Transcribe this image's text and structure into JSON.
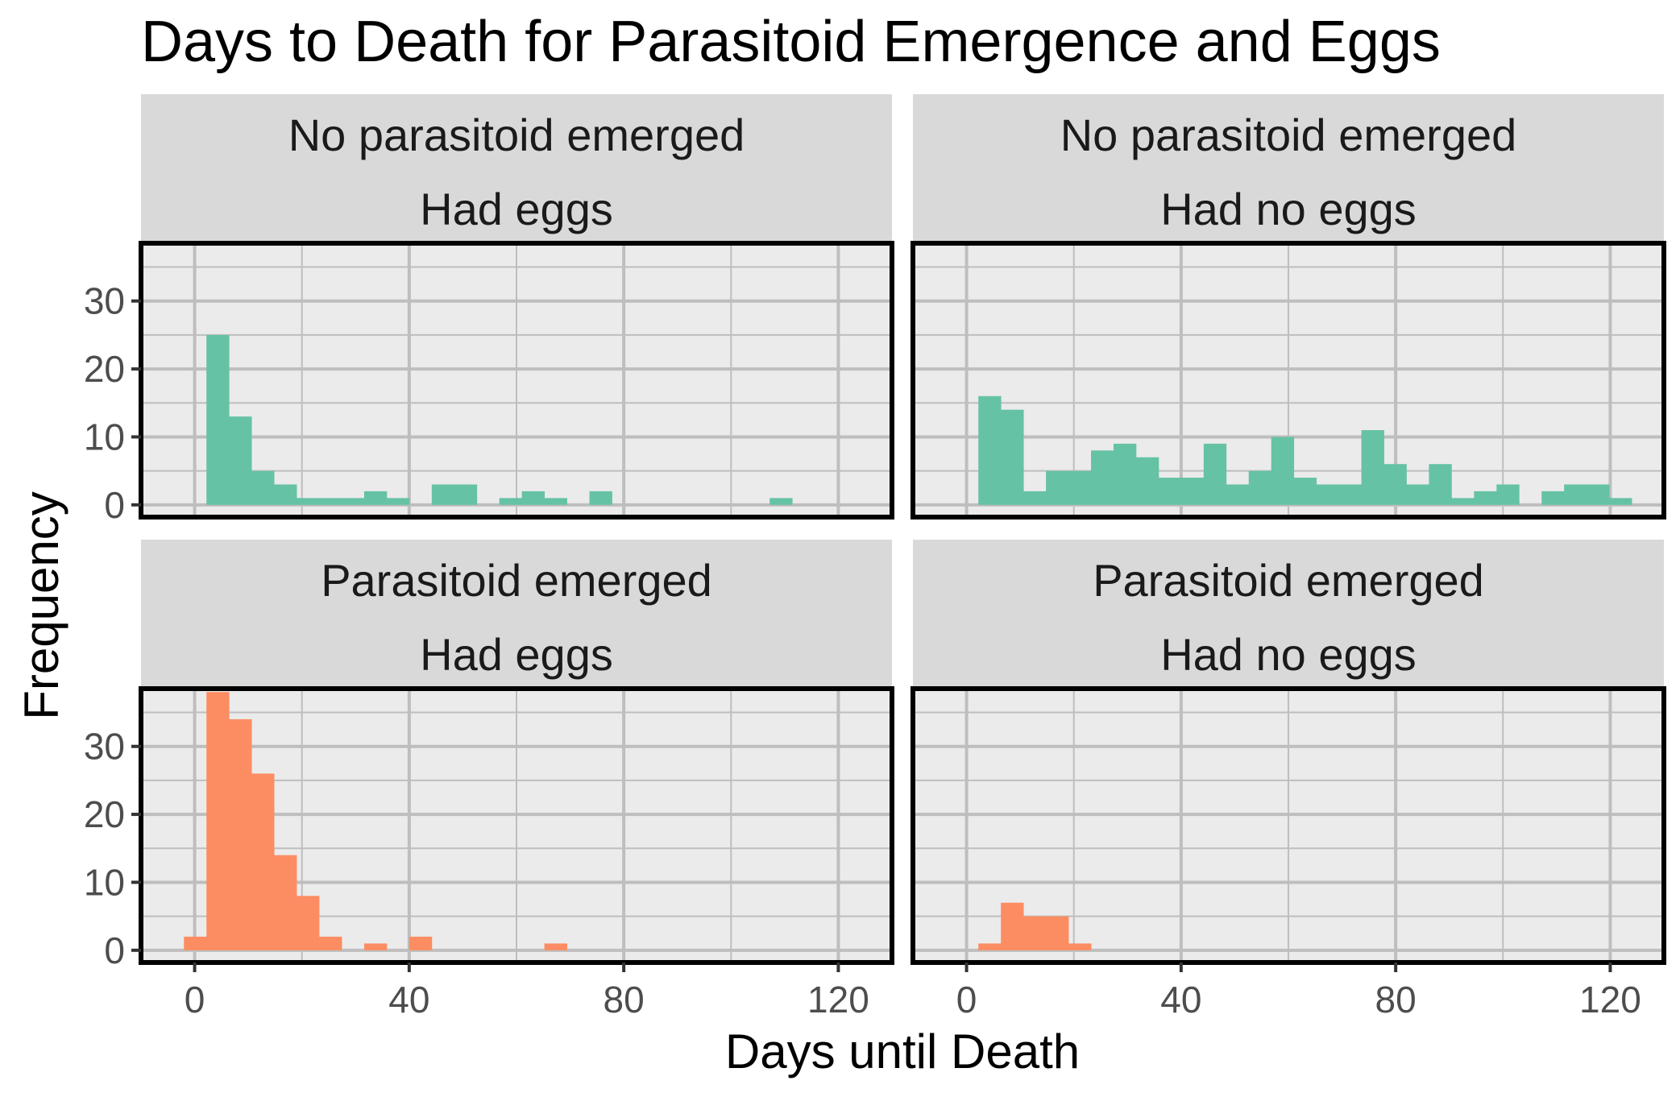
{
  "chart_data": {
    "type": "bar",
    "title": "Days to Death for Parasitoid Emergence and Eggs",
    "xlabel": "Days until Death",
    "ylabel": "Frequency",
    "xlim": [
      -10,
      130
    ],
    "ylim": [
      -1.8,
      38.5
    ],
    "x_ticks": [
      0,
      40,
      80,
      120
    ],
    "x_tick_labels": [
      "0",
      "40",
      "80",
      "120"
    ],
    "y_ticks": [
      0,
      10,
      20,
      30
    ],
    "y_tick_labels": [
      "0",
      "10",
      "20",
      "30"
    ],
    "bin_width": 4.2,
    "grid": true,
    "colors": {
      "no_parasitoid": "#66c2a5",
      "parasitoid": "#fc8d62",
      "panel_bg": "#ebebeb",
      "strip_bg": "#d9d9d9",
      "grid": "#bebebe",
      "border": "#000000"
    },
    "panels": [
      {
        "row": 0,
        "col": 0,
        "strip": [
          "No parasitoid emerged",
          "Had eggs"
        ],
        "fill": "no_parasitoid",
        "bin_start": 2.2,
        "counts": [
          25,
          13,
          5,
          3,
          1,
          1,
          1,
          2,
          1,
          0,
          3,
          3,
          0,
          1,
          2,
          1,
          0,
          2,
          0,
          0,
          0,
          0,
          0,
          0,
          0,
          1,
          0,
          0,
          0
        ]
      },
      {
        "row": 0,
        "col": 1,
        "strip": [
          "No parasitoid emerged",
          "Had no eggs"
        ],
        "fill": "no_parasitoid",
        "bin_start": 2.2,
        "counts": [
          16,
          14,
          2,
          5,
          5,
          8,
          9,
          7,
          4,
          4,
          9,
          3,
          5,
          10,
          4,
          3,
          3,
          11,
          6,
          3,
          6,
          1,
          2,
          3,
          0,
          2,
          3,
          3,
          1
        ]
      },
      {
        "row": 1,
        "col": 0,
        "strip": [
          "Parasitoid emerged",
          "Had eggs"
        ],
        "fill": "parasitoid",
        "bin_start": -2.0,
        "counts": [
          2,
          38,
          34,
          26,
          14,
          8,
          2,
          0,
          1,
          0,
          2,
          0,
          0,
          0,
          0,
          0,
          1
        ]
      },
      {
        "row": 1,
        "col": 1,
        "strip": [
          "Parasitoid emerged",
          "Had no eggs"
        ],
        "fill": "parasitoid",
        "bin_start": 2.2,
        "counts": [
          1,
          7,
          5,
          5,
          1
        ]
      }
    ]
  }
}
